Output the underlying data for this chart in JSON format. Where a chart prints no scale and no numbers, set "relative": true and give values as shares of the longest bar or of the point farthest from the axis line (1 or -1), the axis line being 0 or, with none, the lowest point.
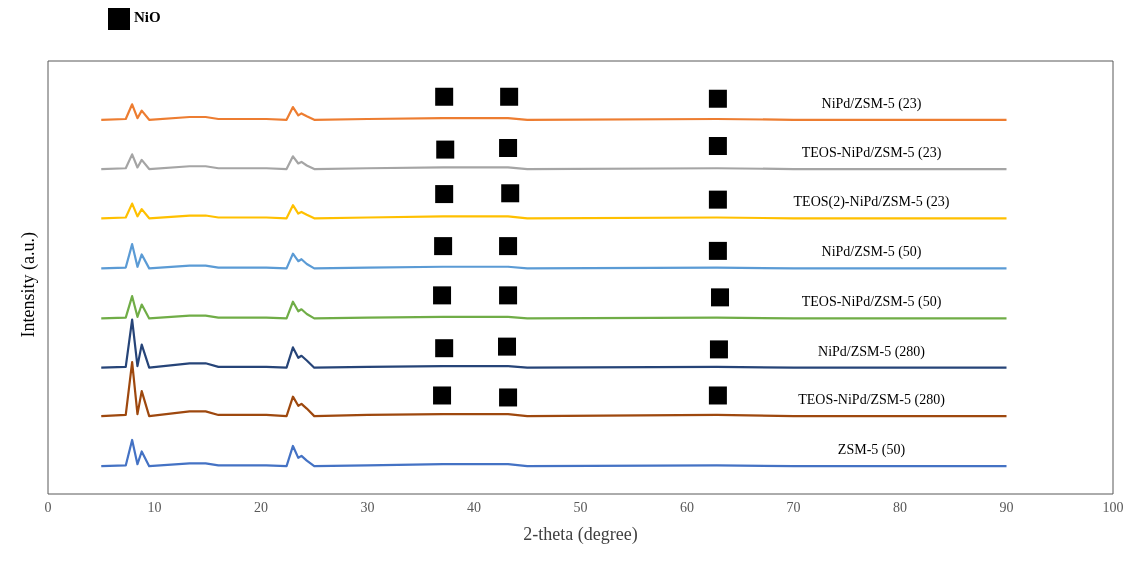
{
  "chart_data": {
    "type": "line",
    "relative": true,
    "xlabel": "2-theta (degree)",
    "ylabel": "Intensity (a.u.)",
    "xlim": [
      0,
      100
    ],
    "xticks": [
      0,
      10,
      20,
      30,
      40,
      50,
      60,
      70,
      80,
      90,
      100
    ],
    "grid": false,
    "legend": "top left",
    "x": [
      5,
      7.3,
      7.9,
      8.4,
      8.8,
      9.5,
      13.3,
      14,
      14.8,
      16,
      20.5,
      22.4,
      23.0,
      23.5,
      23.8,
      24.3,
      25,
      30,
      37.1,
      43.2,
      45,
      62.8,
      70,
      90
    ],
    "series": [
      {
        "name": "NiPd/ZSM-5 (23)",
        "color": "#ed7d31",
        "values": [
          0.942,
          0.944,
          0.981,
          0.946,
          0.965,
          0.942,
          0.949,
          0.949,
          0.949,
          0.944,
          0.944,
          0.942,
          0.974,
          0.953,
          0.958,
          0.951,
          0.942,
          0.944,
          0.946,
          0.946,
          0.942,
          0.944,
          0.942,
          0.942
        ]
      },
      {
        "name": "TEOS-NiPd/ZSM-5 (23)",
        "color": "#a5a5a5",
        "values": [
          0.818,
          0.82,
          0.855,
          0.822,
          0.841,
          0.818,
          0.825,
          0.825,
          0.825,
          0.82,
          0.82,
          0.818,
          0.85,
          0.832,
          0.836,
          0.827,
          0.818,
          0.82,
          0.822,
          0.822,
          0.818,
          0.82,
          0.818,
          0.818
        ]
      },
      {
        "name": "TEOS(2)-NiPd/ZSM-5 (23)",
        "color": "#ffc000",
        "values": [
          0.694,
          0.696,
          0.731,
          0.699,
          0.717,
          0.694,
          0.701,
          0.701,
          0.701,
          0.696,
          0.696,
          0.694,
          0.727,
          0.706,
          0.71,
          0.703,
          0.694,
          0.696,
          0.699,
          0.699,
          0.694,
          0.696,
          0.694,
          0.694
        ]
      },
      {
        "name": "NiPd/ZSM-5 (50)",
        "color": "#5b9bd5",
        "values": [
          0.568,
          0.57,
          0.629,
          0.572,
          0.603,
          0.568,
          0.575,
          0.575,
          0.575,
          0.57,
          0.57,
          0.568,
          0.605,
          0.586,
          0.591,
          0.579,
          0.568,
          0.57,
          0.572,
          0.572,
          0.568,
          0.57,
          0.568,
          0.568
        ]
      },
      {
        "name": "TEOS-NiPd/ZSM-5 (50)",
        "color": "#70ad47",
        "values": [
          0.442,
          0.444,
          0.498,
          0.446,
          0.477,
          0.442,
          0.449,
          0.449,
          0.449,
          0.444,
          0.444,
          0.442,
          0.484,
          0.46,
          0.465,
          0.453,
          0.442,
          0.444,
          0.446,
          0.446,
          0.442,
          0.444,
          0.442,
          0.442
        ]
      },
      {
        "name": "NiPd/ZSM-5 (280)",
        "color": "#264478",
        "values": [
          0.318,
          0.32,
          0.439,
          0.322,
          0.376,
          0.318,
          0.329,
          0.329,
          0.329,
          0.32,
          0.32,
          0.318,
          0.369,
          0.343,
          0.348,
          0.336,
          0.318,
          0.32,
          0.322,
          0.322,
          0.318,
          0.32,
          0.318,
          0.318
        ]
      },
      {
        "name": "TEOS-NiPd/ZSM-5 (280)",
        "color": "#9e480e",
        "values": [
          0.196,
          0.199,
          0.332,
          0.201,
          0.259,
          0.196,
          0.208,
          0.208,
          0.208,
          0.199,
          0.199,
          0.196,
          0.245,
          0.222,
          0.227,
          0.215,
          0.196,
          0.199,
          0.201,
          0.201,
          0.196,
          0.199,
          0.196,
          0.196
        ]
      },
      {
        "name": "ZSM-5 (50)",
        "color": "#4472c4",
        "values": [
          0.07,
          0.072,
          0.136,
          0.075,
          0.107,
          0.07,
          0.077,
          0.077,
          0.077,
          0.072,
          0.072,
          0.07,
          0.121,
          0.091,
          0.096,
          0.084,
          0.07,
          0.072,
          0.075,
          0.075,
          0.07,
          0.072,
          0.07,
          0.07
        ]
      },
      {
        "name": "NiO",
        "type": "scatter",
        "color": "#000000",
        "marker": "square",
        "x": [
          37.2,
          43.3,
          62.9,
          37.3,
          43.2,
          62.9,
          37.2,
          43.4,
          62.9,
          37.1,
          43.2,
          62.9,
          37.0,
          43.2,
          63.1,
          37.2,
          43.1,
          63.0,
          37.0,
          43.2,
          62.9
        ],
        "values": [
          1.0,
          1.0,
          0.995,
          0.867,
          0.871,
          0.876,
          0.755,
          0.757,
          0.741,
          0.624,
          0.624,
          0.612,
          0.5,
          0.5,
          0.495,
          0.367,
          0.371,
          0.364,
          0.248,
          0.243,
          0.248
        ]
      }
    ]
  }
}
